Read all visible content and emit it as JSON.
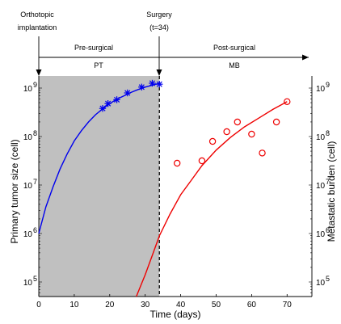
{
  "chart_data": {
    "type": "scatter",
    "annotations": {
      "orthotopic": [
        "Orthotopic",
        "implantation"
      ],
      "surgery": [
        "Surgery",
        "(t=34)"
      ],
      "presurgical": "Pre-surgical",
      "postsurgical": "Post-surgical",
      "pt": "PT",
      "mb": "MB"
    },
    "xlabel": "Time (days)",
    "ylabel_left": "Primary tumor size (cell)",
    "ylabel_right": "Metastatic burden (cell)",
    "xlim": [
      0,
      77
    ],
    "ylim_log10": [
      4.7,
      9.25
    ],
    "yscale": "log",
    "x_ticks": [
      0,
      10,
      20,
      30,
      40,
      50,
      60,
      70
    ],
    "y_ticks": [
      {
        "exp": 5,
        "label": "10",
        "sup": "5"
      },
      {
        "exp": 6,
        "label": "10",
        "sup": "6"
      },
      {
        "exp": 7,
        "label": "10",
        "sup": "7"
      },
      {
        "exp": 8,
        "label": "10",
        "sup": "8"
      },
      {
        "exp": 9,
        "label": "10",
        "sup": "9"
      }
    ],
    "surgery_time": 34,
    "shaded_region": [
      0,
      34
    ],
    "colors": {
      "primary": "#0000ee",
      "metastatic": "#ee0000",
      "shade": "#c0c0c0"
    },
    "series": [
      {
        "marker": "asterisk",
        "color": "#0000ee",
        "x": [
          18,
          19.5,
          22,
          25,
          29,
          32,
          34
        ],
        "y_log10": [
          8.58,
          8.68,
          8.76,
          8.9,
          9.02,
          9.1,
          9.08
        ]
      },
      {
        "marker": "circle",
        "color": "#ee0000",
        "x": [
          39,
          46,
          49,
          53,
          56,
          60,
          63,
          67,
          70
        ],
        "y_log10": [
          7.45,
          7.5,
          7.9,
          8.1,
          8.3,
          8.05,
          7.66,
          8.3,
          8.72
        ]
      },
      {
        "line": "primary-growth",
        "color": "#0000ee",
        "x": [
          0,
          2,
          4,
          6,
          8,
          10,
          12,
          14,
          16,
          18,
          20,
          22,
          24,
          26,
          28,
          30,
          32,
          34
        ],
        "y_log10": [
          6.0,
          6.55,
          6.96,
          7.33,
          7.64,
          7.91,
          8.12,
          8.3,
          8.45,
          8.57,
          8.68,
          8.77,
          8.84,
          8.91,
          8.97,
          9.02,
          9.06,
          9.1
        ]
      },
      {
        "line": "metastatic-growth",
        "color": "#ee0000",
        "x": [
          27.5,
          30,
          32,
          34,
          37,
          40,
          43,
          46,
          50,
          54,
          58,
          62,
          66,
          70
        ],
        "y_log10": [
          4.7,
          5.15,
          5.55,
          5.95,
          6.4,
          6.8,
          7.1,
          7.4,
          7.72,
          7.98,
          8.2,
          8.38,
          8.56,
          8.72
        ]
      }
    ]
  }
}
